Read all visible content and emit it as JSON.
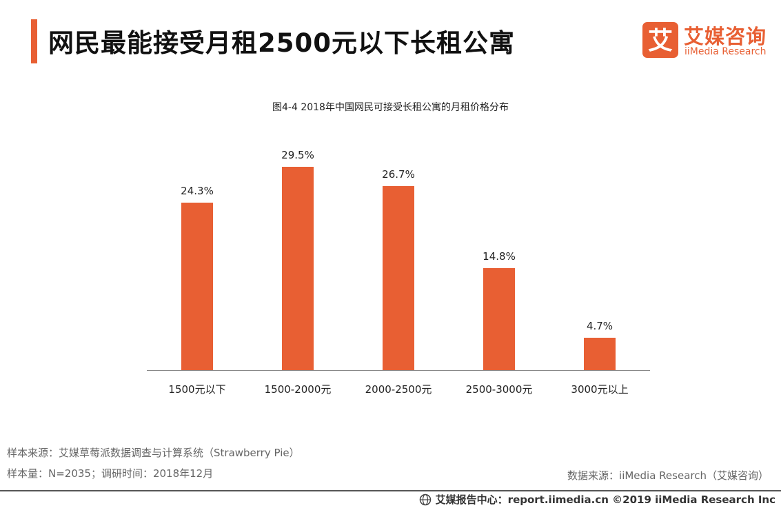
{
  "header": {
    "title": "网民最能接受月租2500元以下长租公寓"
  },
  "logo": {
    "mark": "艾",
    "cn": "艾媒咨询",
    "en": "iiMedia Research"
  },
  "colors": {
    "accent": "#e85f33",
    "bar": "#e85f33",
    "axis": "#888888"
  },
  "chart_data": {
    "type": "bar",
    "title": "图4-4 2018年中国网民可接受长租公寓的月租价格分布",
    "categories": [
      "1500元以下",
      "1500-2000元",
      "2000-2500元",
      "2500-3000元",
      "3000元以上"
    ],
    "values": [
      24.3,
      29.5,
      26.7,
      14.8,
      4.7
    ],
    "labels": [
      "24.3%",
      "29.5%",
      "26.7%",
      "14.8%",
      "4.7%"
    ],
    "unit": "%",
    "xlabel": "",
    "ylabel": "",
    "ylim": [
      0,
      35
    ],
    "grid": false,
    "legend": "none"
  },
  "notes": {
    "sample_source": "样本来源：艾媒草莓派数据调查与计算系统（Strawberry Pie）",
    "sample_size": "样本量：N=2035；调研时间：2018年12月",
    "data_source": "数据来源：iiMedia Research（艾媒咨询）"
  },
  "footer": {
    "text": "艾媒报告中心：report.iimedia.cn  ©2019  iiMedia Research  Inc",
    "icon": "globe-icon"
  }
}
